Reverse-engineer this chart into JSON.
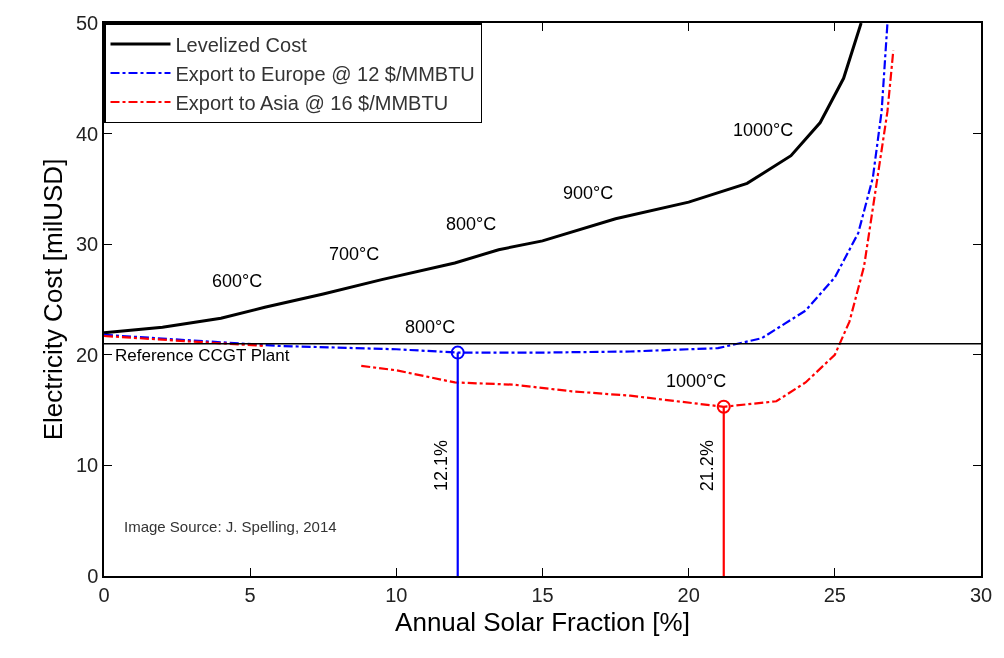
{
  "chart_data": {
    "type": "line",
    "xlabel": "Annual Solar Fraction [%]",
    "ylabel": "Electricity Cost [milUSD]",
    "xlim": [
      0,
      30
    ],
    "xticks": [
      0,
      5,
      10,
      15,
      20,
      25,
      30
    ],
    "ylim": [
      0,
      50
    ],
    "yticks": [
      0,
      10,
      20,
      30,
      40,
      50
    ],
    "legend": "top left",
    "marker": "none",
    "series": [
      {
        "name": "Levelized Cost",
        "color": "#000000",
        "line_style": "solid",
        "x": [
          0,
          2,
          4,
          5.5,
          7.5,
          9.5,
          12,
          13.5,
          15,
          17.5,
          20,
          22,
          23.5,
          24.5,
          25.3,
          25.9
        ],
        "values": [
          22,
          22.5,
          23.3,
          24.3,
          25.5,
          26.8,
          28.3,
          29.5,
          30.3,
          32.3,
          33.8,
          35.5,
          38,
          41,
          45,
          50
        ]
      },
      {
        "name": "Export to Europe @ 12 $/MMBTU",
        "color": "#0000ff",
        "line_style": "dashdot",
        "x": [
          0,
          3,
          6,
          10,
          12.1,
          15,
          18,
          21,
          22.5,
          24,
          25,
          25.8,
          26.3,
          26.6,
          26.8
        ],
        "values": [
          21.8,
          21.3,
          20.8,
          20.5,
          20.2,
          20.2,
          20.3,
          20.6,
          21.5,
          24,
          27,
          31,
          36,
          42,
          50
        ]
      },
      {
        "name": "Export to Asia @ 16 $/MMBTU",
        "color": "#ff0000",
        "line_style": "dashdot",
        "x": [
          0,
          3,
          5.5,
          7,
          8.8,
          10,
          12,
          14,
          16,
          18,
          21.2,
          23,
          24,
          25,
          25.5,
          26,
          26.4,
          26.8,
          27
        ],
        "values": [
          21.7,
          21.2,
          20.8,
          null,
          19,
          18.6,
          17.5,
          17.3,
          16.7,
          16.3,
          15.3,
          15.8,
          17.5,
          20,
          23,
          28,
          35,
          42,
          47.5
        ]
      },
      {
        "type": "line",
        "color": "#0000ff",
        "line_style": "solid",
        "x": [
          12.1,
          12.1
        ],
        "values": [
          0,
          20.2
        ]
      },
      {
        "type": "line",
        "color": "#ff0000",
        "line_style": "solid",
        "x": [
          21.2,
          21.2
        ],
        "values": [
          0,
          15.3
        ]
      },
      {
        "type": "scatter",
        "color": "#0000ff",
        "marker": "circle",
        "x": [
          12.1
        ],
        "values": [
          20.2
        ]
      },
      {
        "type": "scatter",
        "color": "#ff0000",
        "marker": "circle",
        "x": [
          21.2
        ],
        "values": [
          15.3
        ]
      }
    ],
    "ref_lines": [
      {
        "axis": "y",
        "value": 21,
        "label": "Reference CCGT Plant",
        "color": "#000000"
      }
    ],
    "annotations": [
      {
        "text": "600°C",
        "x": 5.5,
        "y": 24.3
      },
      {
        "text": "700°C",
        "x": 9.5,
        "y": 26.8
      },
      {
        "text": "800°C",
        "x": 13.5,
        "y": 29.5
      },
      {
        "text": "900°C",
        "x": 17.5,
        "y": 32.3
      },
      {
        "text": "1000°C",
        "x": 23.5,
        "y": 38
      },
      {
        "text": "800°C",
        "x": 12.1,
        "y": 20.2
      },
      {
        "text": "1000°C",
        "x": 21.2,
        "y": 15.3
      },
      {
        "text": "12.1%",
        "x": 12.1,
        "y": 10
      },
      {
        "text": "21.2%",
        "x": 21.2,
        "y": 10
      },
      "Image Source: J. Spelling, 2014"
    ]
  }
}
